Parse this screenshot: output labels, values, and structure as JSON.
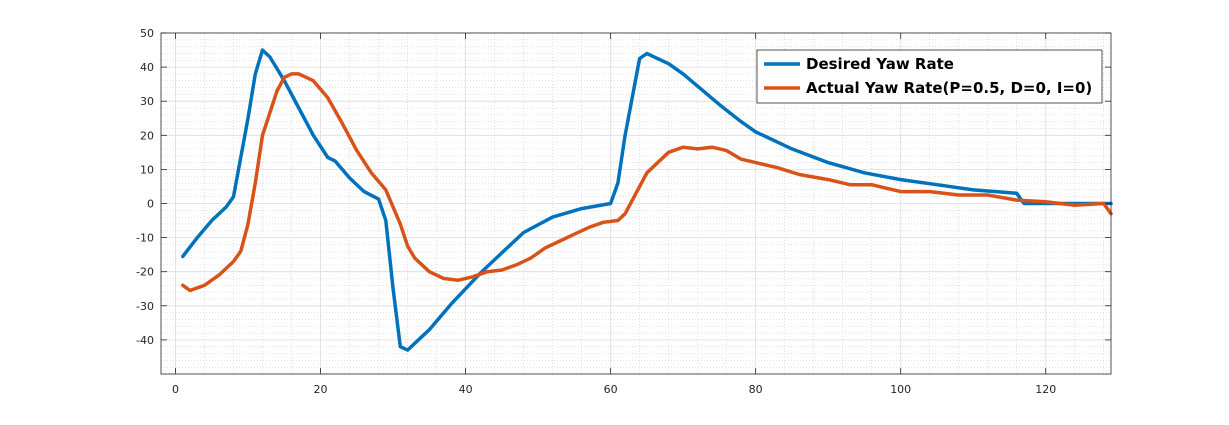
{
  "chart_data": {
    "type": "line",
    "title": "",
    "xlabel": "",
    "ylabel": "",
    "xlim": [
      -2,
      129
    ],
    "ylim": [
      -50,
      50
    ],
    "xticks": [
      0,
      20,
      40,
      60,
      80,
      100,
      120
    ],
    "yticks": [
      -40,
      -30,
      -20,
      -10,
      0,
      10,
      20,
      30,
      40,
      50
    ],
    "grid": true,
    "minor_grid": true,
    "legend_position": "top-right",
    "series": [
      {
        "name": "Desired Yaw Rate",
        "color": "#0072BD",
        "x": [
          1,
          3,
          5,
          7,
          8,
          10,
          11,
          12,
          13,
          15,
          17,
          19,
          21,
          22,
          24,
          26,
          28,
          29,
          30,
          31,
          32,
          33,
          35,
          38,
          42,
          45,
          48,
          52,
          56,
          60,
          61,
          62,
          64,
          65,
          66,
          68,
          70,
          75,
          78,
          80,
          85,
          90,
          95,
          100,
          105,
          110,
          116,
          117,
          120,
          125,
          129
        ],
        "y": [
          -15.5,
          -10,
          -5,
          -1,
          2,
          25,
          38,
          45,
          43,
          36,
          28,
          20,
          13.5,
          12.5,
          7.5,
          3.5,
          1.3,
          -5,
          -25,
          -42,
          -43,
          -41,
          -37,
          -29.5,
          -20.5,
          -14.5,
          -8.5,
          -4,
          -1.5,
          0,
          6,
          20,
          42.5,
          44,
          43,
          41,
          38,
          29,
          24,
          21,
          16,
          12,
          9,
          7,
          5.5,
          4,
          3,
          0,
          0,
          0,
          0
        ]
      },
      {
        "name": "Actual Yaw Rate(P=0.5, D=0, I=0)",
        "color": "#D95319",
        "x": [
          1,
          2,
          4,
          6,
          8,
          9,
          10,
          11,
          12,
          14,
          15,
          16,
          17,
          19,
          21,
          23,
          25,
          27,
          29,
          31,
          32,
          33,
          35,
          37,
          39,
          41,
          43,
          45,
          47,
          49,
          51,
          53,
          55,
          57,
          59,
          61,
          62,
          63,
          65,
          68,
          70,
          72,
          74,
          76,
          78,
          80,
          83,
          86,
          90,
          93,
          96,
          98,
          100,
          104,
          108,
          112,
          116,
          120,
          124,
          128,
          129
        ],
        "y": [
          -24,
          -25.5,
          -24,
          -21,
          -17,
          -14,
          -6,
          6,
          20,
          33,
          37,
          38,
          38,
          36,
          31,
          23.5,
          15.5,
          9,
          4,
          -6,
          -12.5,
          -16,
          -20,
          -22,
          -22.5,
          -21.5,
          -20,
          -19.5,
          -18,
          -16,
          -13,
          -11,
          -9,
          -7,
          -5.5,
          -5,
          -3,
          1,
          9,
          15,
          16.5,
          16,
          16.5,
          15.5,
          13,
          12,
          10.5,
          8.5,
          7,
          5.5,
          5.5,
          4.5,
          3.5,
          3.5,
          2.5,
          2.5,
          1,
          0.5,
          -0.5,
          0,
          -3
        ]
      }
    ]
  }
}
